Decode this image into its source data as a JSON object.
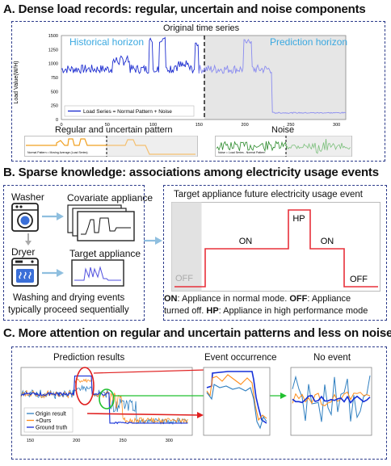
{
  "sectionA": {
    "title": "A. Dense load records: regular, uncertain and noise components",
    "original_title": "Original time series",
    "historical_label": "Historical horizon",
    "prediction_label": "Prediction horizon",
    "ylabel": "Load Value(W/H)",
    "legend": "Load Series = Normal Pattern + Noise",
    "x_ticks": [
      "0",
      "50",
      "100",
      "150",
      "200",
      "250",
      "300"
    ],
    "y_ticks": [
      "0",
      "250",
      "500",
      "750",
      "1000",
      "1250",
      "1500"
    ],
    "regular_title": "Regular and uncertain pattern",
    "regular_legend": "Normal Pattern = Moving Average (Load Series)",
    "noise_title": "Noise",
    "noise_legend": "Noise = Load Series - Normal Pattern"
  },
  "sectionB": {
    "title": "B. Sparse knowledge: associations among electricity usage events",
    "washer": "Washer",
    "dryer": "Dryer",
    "covariate": "Covariate appliance",
    "target": "Target appliance",
    "caption_line1": "Washing and drying events",
    "caption_line2": "typically proceed sequentially",
    "event_title": "Target appliance future electricity usage event",
    "states": {
      "off": "OFF",
      "on": "ON",
      "hp": "HP"
    },
    "desc_line1_key1": "ON",
    "desc_line1_text1": ": Appliance in normal mode. ",
    "desc_line1_key2": "OFF",
    "desc_line1_text2": ": Appliance",
    "desc_line2_text1": "turned off. ",
    "desc_line2_key": "HP",
    "desc_line2_text2": ": Appliance in high performance mode"
  },
  "sectionC": {
    "title": "C. More attention on regular and uncertain patterns and less on noise",
    "prediction_title": "Prediction results",
    "event_title": "Event occurrence",
    "no_event_title": "No event",
    "legend": [
      "Origin result",
      "+Ours",
      "Ground truth"
    ],
    "x_ticks": [
      "150",
      "200",
      "250",
      "300"
    ]
  },
  "colors": {
    "frame": "#2b3a8a",
    "series_blue": "#1f2fd0",
    "series_light": "#8a8cf0",
    "horizon_text": "#3aa8e0",
    "orange": "#f0a020",
    "green": "#2a8a2a",
    "red": "#e23030",
    "event_line": "#e8303a",
    "origin": "#2f7fc0",
    "ours": "#ff8c1a",
    "truth": "#1530d8"
  }
}
